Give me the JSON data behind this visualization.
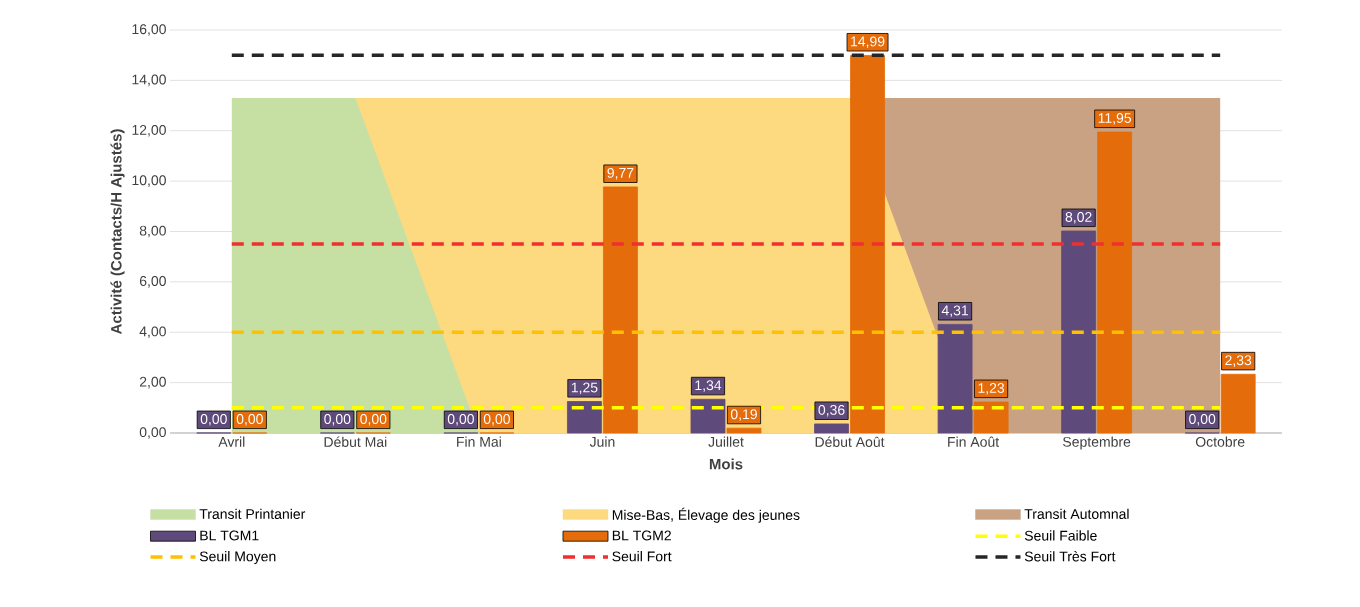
{
  "chart_data": {
    "type": "bar",
    "xlabel": "Mois",
    "ylabel": "Activité (Contacts/H Ajustés)",
    "categories": [
      "Avril",
      "Début Mai",
      "Fin Mai",
      "Juin",
      "Juillet",
      "Début Août",
      "Fin Août",
      "Septembre",
      "Octobre"
    ],
    "series": [
      {
        "name": "Transit Printanier",
        "type": "area",
        "color": "#c6e0a4",
        "values": [
          13.3,
          13.3,
          0,
          null,
          null,
          null,
          null,
          null,
          null
        ]
      },
      {
        "name": "Mise-Bas, Élevage des jeunes",
        "type": "area",
        "color": "#fdd980",
        "values": [
          null,
          13.3,
          13.3,
          13.3,
          13.3,
          13.3,
          0,
          null,
          null
        ]
      },
      {
        "name": "Transit Automnal",
        "type": "area",
        "color": "#c9a283",
        "values": [
          null,
          null,
          null,
          null,
          null,
          13.3,
          13.3,
          13.3,
          13.3
        ]
      },
      {
        "name": "BL TGM1",
        "color": "#5f4b7b",
        "values": [
          0,
          0,
          0,
          1.25,
          1.34,
          0.36,
          4.31,
          8.02,
          0
        ],
        "value_labels": [
          "0,00",
          "0,00",
          "0,00",
          "1,25",
          "1,34",
          "0,36",
          "4,31",
          "8,02",
          "0,00"
        ]
      },
      {
        "name": "BL TGM2",
        "color": "#e46c0a",
        "values": [
          0,
          0,
          0,
          9.77,
          0.19,
          14.99,
          1.23,
          11.95,
          2.33
        ],
        "value_labels": [
          "0,00",
          "0,00",
          "0,00",
          "9,77",
          "0,19",
          "14,99",
          "1,23",
          "11,95",
          "2,33"
        ]
      }
    ],
    "ref_lines": [
      {
        "axis": "y",
        "value": 1,
        "label": "Seuil Faible",
        "color": "#ffff00",
        "line_style": "dashed"
      },
      {
        "axis": "y",
        "value": 4,
        "label": "Seuil Moyen",
        "color": "#ffc000",
        "line_style": "dashed"
      },
      {
        "axis": "y",
        "value": 7.5,
        "label": "Seuil Fort",
        "color": "#f03030",
        "line_style": "dashed"
      },
      {
        "axis": "y",
        "value": 15,
        "label": "Seuil Très Fort",
        "color": "#262626",
        "line_style": "dashed"
      }
    ],
    "ylim": [
      0,
      16
    ],
    "yticks": [
      {
        "value": 0,
        "label": "0,00"
      },
      {
        "value": 2,
        "label": "2,00"
      },
      {
        "value": 4,
        "label": "4,00"
      },
      {
        "value": 6,
        "label": "6,00"
      },
      {
        "value": 8,
        "label": "8,00"
      },
      {
        "value": 10,
        "label": "10,00"
      },
      {
        "value": 12,
        "label": "12,00"
      },
      {
        "value": 14,
        "label": "14,00"
      },
      {
        "value": 16,
        "label": "16,00"
      }
    ],
    "grid": "y",
    "legend": "bottom"
  }
}
